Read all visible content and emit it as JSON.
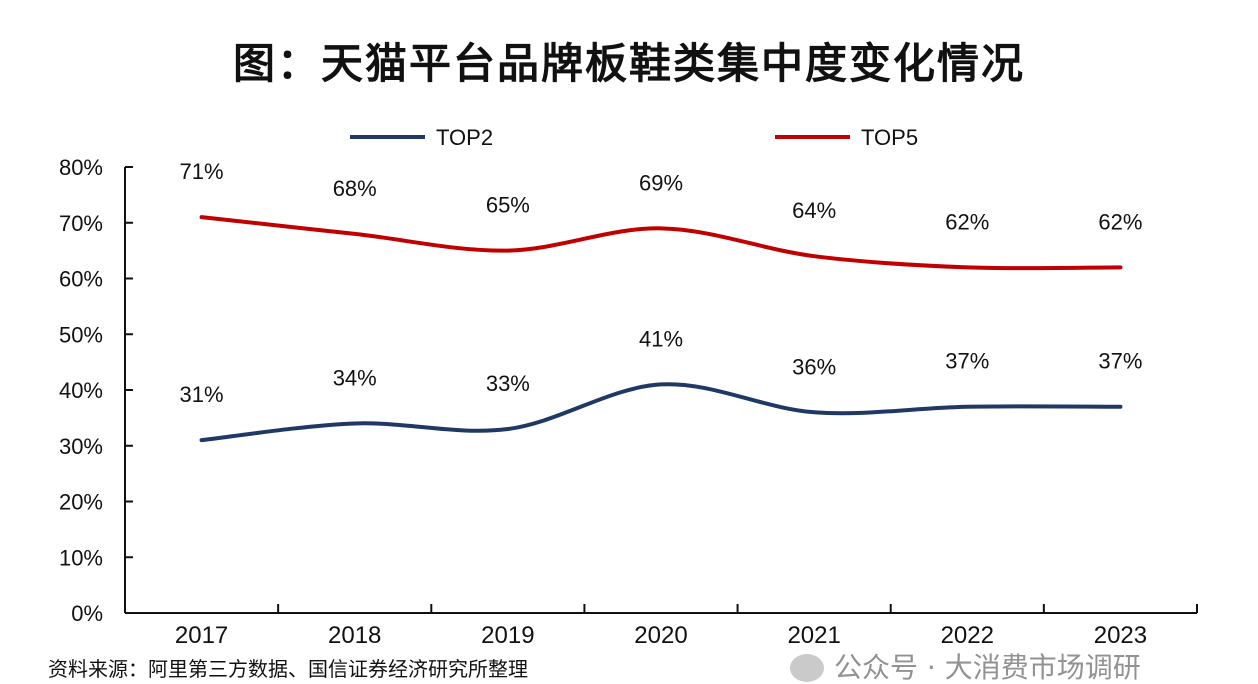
{
  "title": "图：天猫平台品牌板鞋类集中度变化情况",
  "source": "资料来源：阿里第三方数据、国信证券经济研究所整理",
  "watermark": {
    "text": "公众号 · 大消费市场调研",
    "icon": "wechat-icon"
  },
  "chart_data": {
    "type": "line",
    "title": "图：天猫平台品牌板鞋类集中度变化情况",
    "categories": [
      "2017",
      "2018",
      "2019",
      "2020",
      "2021",
      "2022",
      "2023"
    ],
    "series": [
      {
        "name": "TOP2",
        "color": "#1f3864",
        "values": [
          31,
          34,
          33,
          41,
          36,
          37,
          37
        ],
        "labels": [
          "31%",
          "34%",
          "33%",
          "41%",
          "36%",
          "37%",
          "37%"
        ]
      },
      {
        "name": "TOP5",
        "color": "#c00000",
        "values": [
          71,
          68,
          65,
          69,
          64,
          62,
          62
        ],
        "labels": [
          "71%",
          "68%",
          "65%",
          "69%",
          "64%",
          "62%",
          "62%"
        ]
      }
    ],
    "ylim": [
      0,
      80
    ],
    "yticks": [
      "0%",
      "10%",
      "20%",
      "30%",
      "40%",
      "50%",
      "60%",
      "70%",
      "80%"
    ],
    "smooth": true,
    "grid": false,
    "legend": "top",
    "xlabel": "",
    "ylabel": ""
  }
}
